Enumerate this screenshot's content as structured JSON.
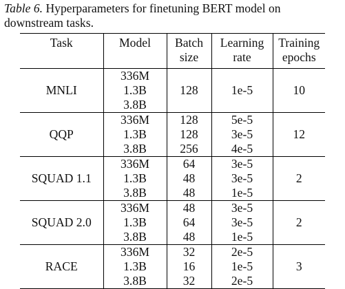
{
  "caption": {
    "label": "Table 6.",
    "text": " Hyperparameters for finetuning BERT model on downstream tasks."
  },
  "headers": [
    "Task",
    "Model",
    "Batch size",
    "Learning rate",
    "Training epochs"
  ],
  "header_lines": [
    [
      "Task"
    ],
    [
      "Model"
    ],
    [
      "Batch",
      "size"
    ],
    [
      "Learning",
      "rate"
    ],
    [
      "Training",
      "epochs"
    ]
  ],
  "groups": [
    {
      "task": "MNLI",
      "epochs": "10",
      "rows": [
        {
          "model": "336M",
          "batch": "",
          "lr": ""
        },
        {
          "model": "1.3B",
          "batch": "128",
          "lr": "1e-5"
        },
        {
          "model": "3.8B",
          "batch": "",
          "lr": ""
        }
      ]
    },
    {
      "task": "QQP",
      "epochs": "12",
      "rows": [
        {
          "model": "336M",
          "batch": "128",
          "lr": "5e-5"
        },
        {
          "model": "1.3B",
          "batch": "128",
          "lr": "3e-5"
        },
        {
          "model": "3.8B",
          "batch": "256",
          "lr": "4e-5"
        }
      ]
    },
    {
      "task": "SQUAD 1.1",
      "epochs": "2",
      "rows": [
        {
          "model": "336M",
          "batch": "64",
          "lr": "3e-5"
        },
        {
          "model": "1.3B",
          "batch": "48",
          "lr": "3e-5"
        },
        {
          "model": "3.8B",
          "batch": "48",
          "lr": "1e-5"
        }
      ]
    },
    {
      "task": "SQUAD 2.0",
      "epochs": "2",
      "rows": [
        {
          "model": "336M",
          "batch": "48",
          "lr": "3e-5"
        },
        {
          "model": "1.3B",
          "batch": "64",
          "lr": "3e-5"
        },
        {
          "model": "3.8B",
          "batch": "48",
          "lr": "1e-5"
        }
      ]
    },
    {
      "task": "RACE",
      "epochs": "3",
      "rows": [
        {
          "model": "336M",
          "batch": "32",
          "lr": "2e-5"
        },
        {
          "model": "1.3B",
          "batch": "16",
          "lr": "1e-5"
        },
        {
          "model": "3.8B",
          "batch": "32",
          "lr": "2e-5"
        }
      ]
    }
  ]
}
